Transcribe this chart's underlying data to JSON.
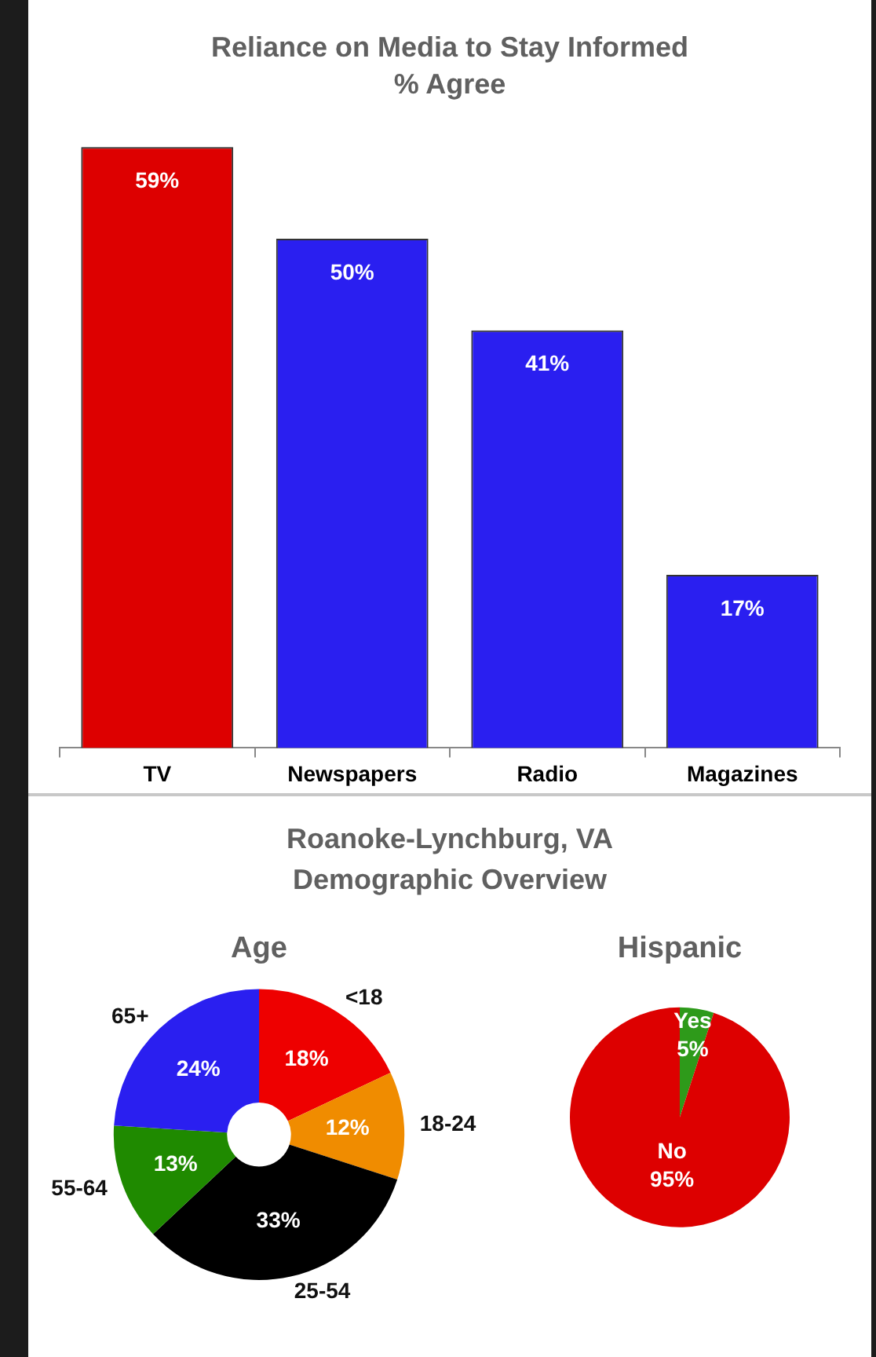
{
  "chart_data": [
    {
      "type": "bar",
      "title": "Reliance on Media to Stay Informed",
      "subtitle": "% Agree",
      "categories": [
        "TV",
        "Newspapers",
        "Radio",
        "Magazines"
      ],
      "values": [
        59,
        50,
        41,
        17
      ],
      "colors": [
        "#dd0000",
        "#2a1ff0",
        "#2a1ff0",
        "#2a1ff0"
      ],
      "value_labels": [
        "59%",
        "50%",
        "41%",
        "17%"
      ]
    },
    {
      "type": "other",
      "title": "Roanoke-Lynchburg, VA",
      "subtitle": "Demographic Overview"
    },
    {
      "type": "donut",
      "title": "Age",
      "categories": [
        "<18",
        "18-24",
        "25-54",
        "55-64",
        "65+"
      ],
      "values": [
        18,
        12,
        33,
        13,
        24
      ],
      "colors": [
        "#ee0000",
        "#f08c00",
        "#000000",
        "#1f8a00",
        "#2a1ff0"
      ],
      "value_labels": [
        "18%",
        "12%",
        "33%",
        "13%",
        "24%"
      ]
    },
    {
      "type": "pie",
      "title": "Hispanic",
      "categories": [
        "Yes",
        "No"
      ],
      "values": [
        5,
        95
      ],
      "colors": [
        "#2e9a1a",
        "#dd0000"
      ],
      "value_labels": [
        "5%",
        "95%"
      ]
    }
  ]
}
